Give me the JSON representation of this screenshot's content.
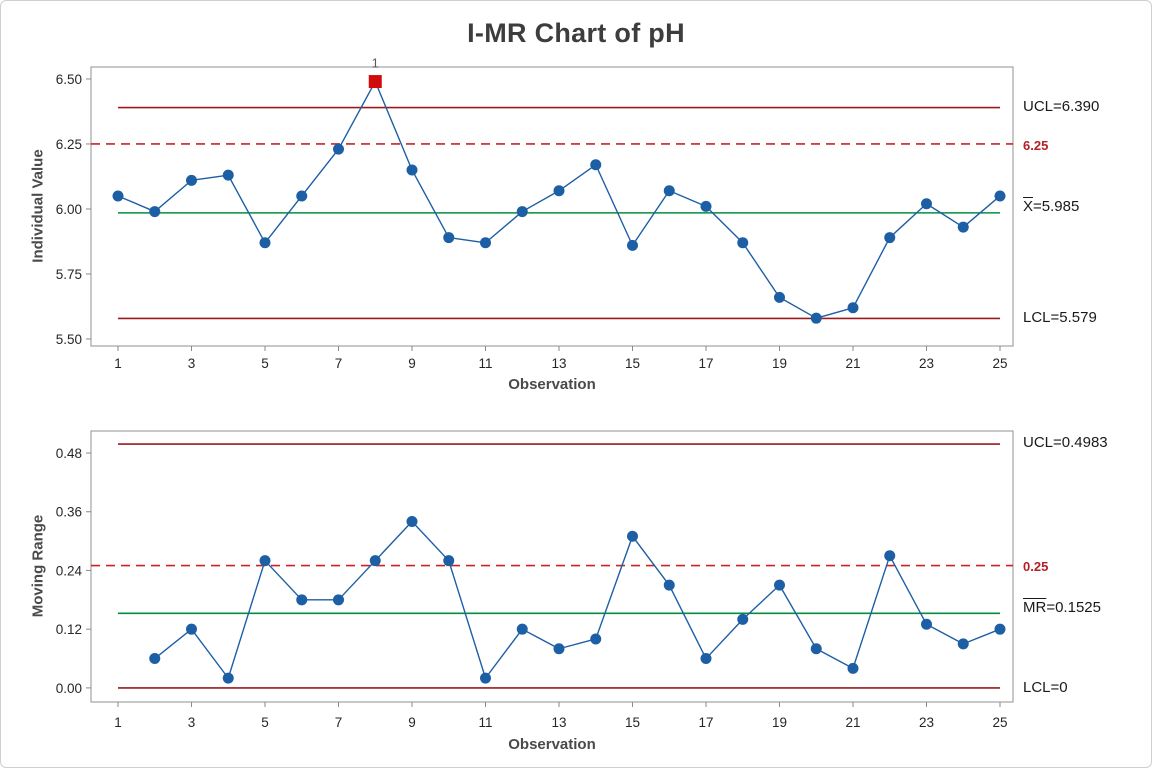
{
  "title": "I-MR Chart of pH",
  "colors": {
    "series_line": "#1d5fa5",
    "marker": "#1d5fa5",
    "out_of_control_marker": "#d00b0b",
    "control_limit_line": "#991b1e",
    "center_line": "#008f3f",
    "reference_dashed_line": "#cc2229",
    "panel_border": "#a3a3a3",
    "tick": "#8a8a8a",
    "tick_text": "#262626",
    "out_label_text": "#595959"
  },
  "chart_data": [
    {
      "type": "line",
      "name": "individuals",
      "ylabel": "Individual Value",
      "xlabel": "Observation",
      "x": [
        1,
        2,
        3,
        4,
        5,
        6,
        7,
        8,
        9,
        10,
        11,
        12,
        13,
        14,
        15,
        16,
        17,
        18,
        19,
        20,
        21,
        22,
        23,
        24,
        25
      ],
      "values": [
        6.05,
        5.99,
        6.11,
        6.13,
        5.87,
        6.05,
        6.23,
        6.49,
        6.15,
        5.89,
        5.87,
        5.99,
        6.07,
        6.17,
        5.86,
        6.07,
        6.01,
        5.87,
        5.66,
        5.58,
        5.62,
        5.89,
        6.02,
        5.93,
        6.05
      ],
      "ucl": 6.39,
      "center": 5.985,
      "lcl": 5.579,
      "reference": 6.25,
      "ylim": [
        5.5,
        6.5
      ],
      "out_of_control": [
        8
      ],
      "out_label": "1",
      "yticks": {
        "values": [
          5.5,
          5.75,
          6.0,
          6.25,
          6.5
        ],
        "labels": [
          "5.50",
          "5.75",
          "6.00",
          "6.25",
          "6.50"
        ]
      },
      "xticks": {
        "values": [
          1,
          3,
          5,
          7,
          9,
          11,
          13,
          15,
          17,
          19,
          21,
          23,
          25
        ],
        "labels": [
          "1",
          "3",
          "5",
          "7",
          "9",
          "11",
          "13",
          "15",
          "17",
          "19",
          "21",
          "23",
          "25"
        ]
      },
      "annotations": {
        "ucl": "UCL=6.390",
        "spec": "6.25",
        "center_prefix": "X",
        "center_rest": "=5.985",
        "lcl": "LCL=5.579"
      }
    },
    {
      "type": "line",
      "name": "moving_range",
      "ylabel": "Moving Range",
      "xlabel": "Observation",
      "x": [
        2,
        3,
        4,
        5,
        6,
        7,
        8,
        9,
        10,
        11,
        12,
        13,
        14,
        15,
        16,
        17,
        18,
        19,
        20,
        21,
        22,
        23,
        24,
        25
      ],
      "values": [
        0.06,
        0.12,
        0.02,
        0.26,
        0.18,
        0.18,
        0.26,
        0.34,
        0.26,
        0.02,
        0.12,
        0.08,
        0.1,
        0.31,
        0.21,
        0.06,
        0.14,
        0.21,
        0.08,
        0.04,
        0.27,
        0.13,
        0.09,
        0.12
      ],
      "ucl": 0.4983,
      "center": 0.1525,
      "lcl": 0,
      "reference": 0.25,
      "ylim": [
        0.0,
        0.48
      ],
      "out_of_control": [],
      "out_label": "",
      "yticks": {
        "values": [
          0.0,
          0.12,
          0.24,
          0.36,
          0.48
        ],
        "labels": [
          "0.00",
          "0.12",
          "0.24",
          "0.36",
          "0.48"
        ]
      },
      "xticks": {
        "values": [
          1,
          3,
          5,
          7,
          9,
          11,
          13,
          15,
          17,
          19,
          21,
          23,
          25
        ],
        "labels": [
          "1",
          "3",
          "5",
          "7",
          "9",
          "11",
          "13",
          "15",
          "17",
          "19",
          "21",
          "23",
          "25"
        ]
      },
      "annotations": {
        "ucl": "UCL=0.4983",
        "spec": "0.25",
        "center_prefix": "MR",
        "center_rest": "=0.1525",
        "lcl": "LCL=0"
      }
    }
  ]
}
